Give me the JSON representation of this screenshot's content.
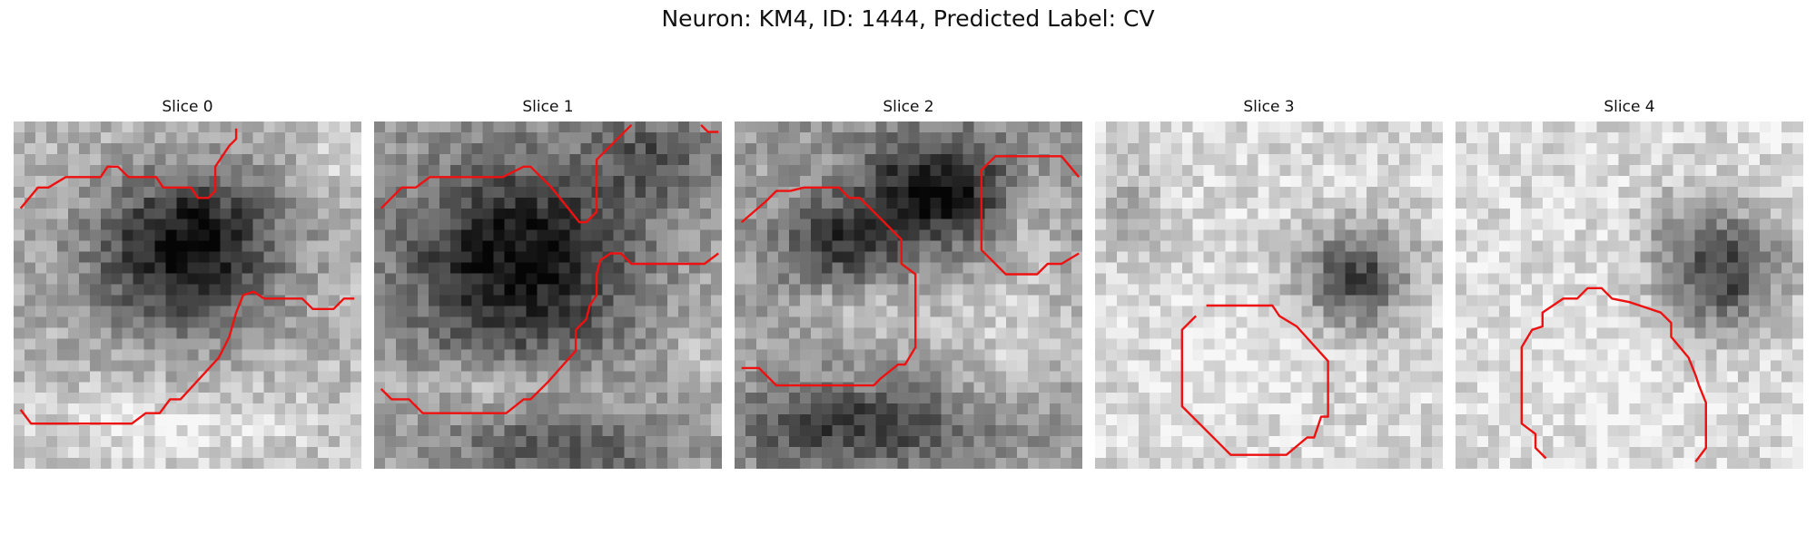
{
  "figure": {
    "title": "Neuron: KM4, ID: 1444, Predicted Label: CV"
  },
  "colors": {
    "contour": "#ee1111",
    "background": "#ffffff"
  },
  "panels": [
    {
      "title": "Slice 0",
      "dark_blobs": [
        [
          0.48,
          0.4,
          0.36,
          0.3,
          0.85
        ],
        [
          0.55,
          0.3,
          0.28,
          0.22,
          0.35
        ]
      ],
      "light_blobs": [
        [
          0.45,
          0.88,
          0.55,
          0.16,
          0.55
        ],
        [
          0.95,
          0.1,
          0.12,
          0.15,
          0.35
        ]
      ],
      "base": 0.72,
      "contours": [
        [
          [
            0.02,
            0.25
          ],
          [
            0.07,
            0.19
          ],
          [
            0.1,
            0.19
          ],
          [
            0.15,
            0.16
          ],
          [
            0.25,
            0.16
          ],
          [
            0.27,
            0.13
          ],
          [
            0.3,
            0.13
          ],
          [
            0.33,
            0.16
          ],
          [
            0.41,
            0.16
          ],
          [
            0.43,
            0.19
          ],
          [
            0.51,
            0.19
          ],
          [
            0.53,
            0.22
          ],
          [
            0.56,
            0.22
          ],
          [
            0.58,
            0.2
          ],
          [
            0.58,
            0.13
          ],
          [
            0.62,
            0.07
          ],
          [
            0.64,
            0.05
          ],
          [
            0.64,
            0.02
          ]
        ],
        [
          [
            0.02,
            0.83
          ],
          [
            0.05,
            0.87
          ],
          [
            0.34,
            0.87
          ],
          [
            0.38,
            0.84
          ],
          [
            0.42,
            0.84
          ],
          [
            0.45,
            0.8
          ],
          [
            0.48,
            0.8
          ],
          [
            0.59,
            0.68
          ],
          [
            0.62,
            0.62
          ],
          [
            0.64,
            0.55
          ],
          [
            0.66,
            0.5
          ],
          [
            0.69,
            0.49
          ],
          [
            0.72,
            0.51
          ],
          [
            0.83,
            0.51
          ],
          [
            0.86,
            0.54
          ],
          [
            0.92,
            0.54
          ],
          [
            0.95,
            0.51
          ],
          [
            0.98,
            0.51
          ]
        ]
      ]
    },
    {
      "title": "Slice 1",
      "dark_blobs": [
        [
          0.42,
          0.4,
          0.4,
          0.35,
          0.95
        ],
        [
          0.8,
          0.1,
          0.22,
          0.15,
          0.45
        ],
        [
          0.55,
          0.95,
          0.35,
          0.12,
          0.5
        ]
      ],
      "light_blobs": [
        [
          0.35,
          0.75,
          0.35,
          0.08,
          0.55
        ],
        [
          0.95,
          0.65,
          0.12,
          0.25,
          0.35
        ]
      ],
      "base": 0.62,
      "contours": [
        [
          [
            0.02,
            0.25
          ],
          [
            0.08,
            0.19
          ],
          [
            0.12,
            0.19
          ],
          [
            0.16,
            0.16
          ],
          [
            0.37,
            0.16
          ],
          [
            0.43,
            0.13
          ],
          [
            0.45,
            0.13
          ],
          [
            0.51,
            0.19
          ],
          [
            0.55,
            0.24
          ],
          [
            0.59,
            0.29
          ],
          [
            0.61,
            0.29
          ],
          [
            0.64,
            0.26
          ],
          [
            0.64,
            0.11
          ],
          [
            0.68,
            0.07
          ],
          [
            0.74,
            0.01
          ]
        ],
        [
          [
            0.02,
            0.77
          ],
          [
            0.05,
            0.8
          ],
          [
            0.1,
            0.8
          ],
          [
            0.14,
            0.84
          ],
          [
            0.38,
            0.84
          ],
          [
            0.43,
            0.8
          ],
          [
            0.45,
            0.8
          ],
          [
            0.5,
            0.75
          ],
          [
            0.58,
            0.66
          ],
          [
            0.58,
            0.6
          ],
          [
            0.61,
            0.57
          ],
          [
            0.62,
            0.53
          ],
          [
            0.64,
            0.5
          ],
          [
            0.64,
            0.44
          ],
          [
            0.65,
            0.4
          ],
          [
            0.68,
            0.38
          ],
          [
            0.71,
            0.38
          ],
          [
            0.74,
            0.41
          ],
          [
            0.95,
            0.41
          ],
          [
            0.99,
            0.38
          ]
        ],
        [
          [
            0.94,
            0.01
          ],
          [
            0.96,
            0.03
          ],
          [
            0.99,
            0.03
          ]
        ]
      ]
    },
    {
      "title": "Slice 2",
      "dark_blobs": [
        [
          0.58,
          0.2,
          0.28,
          0.2,
          0.95
        ],
        [
          0.3,
          0.35,
          0.22,
          0.15,
          0.6
        ],
        [
          0.35,
          0.88,
          0.45,
          0.15,
          0.65
        ]
      ],
      "light_blobs": [
        [
          0.8,
          0.6,
          0.25,
          0.25,
          0.55
        ],
        [
          0.4,
          0.55,
          0.3,
          0.12,
          0.35
        ],
        [
          0.85,
          0.28,
          0.12,
          0.18,
          0.45
        ]
      ],
      "base": 0.62,
      "contours": [
        [
          [
            0.02,
            0.29
          ],
          [
            0.09,
            0.23
          ],
          [
            0.12,
            0.2
          ],
          [
            0.16,
            0.2
          ],
          [
            0.2,
            0.19
          ],
          [
            0.3,
            0.19
          ],
          [
            0.33,
            0.22
          ],
          [
            0.36,
            0.22
          ],
          [
            0.42,
            0.28
          ],
          [
            0.48,
            0.34
          ],
          [
            0.48,
            0.41
          ],
          [
            0.52,
            0.44
          ],
          [
            0.52,
            0.65
          ],
          [
            0.49,
            0.7
          ],
          [
            0.47,
            0.7
          ],
          [
            0.42,
            0.74
          ],
          [
            0.4,
            0.76
          ],
          [
            0.12,
            0.76
          ],
          [
            0.1,
            0.74
          ],
          [
            0.07,
            0.71
          ],
          [
            0.02,
            0.71
          ]
        ],
        [
          [
            0.99,
            0.16
          ],
          [
            0.94,
            0.1
          ],
          [
            0.75,
            0.1
          ],
          [
            0.71,
            0.14
          ],
          [
            0.71,
            0.37
          ],
          [
            0.78,
            0.44
          ],
          [
            0.87,
            0.44
          ],
          [
            0.9,
            0.41
          ],
          [
            0.94,
            0.41
          ],
          [
            0.99,
            0.38
          ]
        ]
      ]
    },
    {
      "title": "Slice 3",
      "dark_blobs": [
        [
          0.75,
          0.45,
          0.2,
          0.18,
          0.95
        ],
        [
          0.1,
          0.25,
          0.1,
          0.2,
          0.3
        ]
      ],
      "light_blobs": [
        [
          0.4,
          0.7,
          0.25,
          0.25,
          0.25
        ]
      ],
      "base": 0.85,
      "contours": [
        [
          [
            0.29,
            0.56
          ],
          [
            0.25,
            0.6
          ],
          [
            0.25,
            0.82
          ],
          [
            0.3,
            0.87
          ],
          [
            0.39,
            0.96
          ],
          [
            0.55,
            0.96
          ],
          [
            0.61,
            0.91
          ],
          [
            0.63,
            0.91
          ],
          [
            0.65,
            0.85
          ],
          [
            0.67,
            0.85
          ],
          [
            0.67,
            0.69
          ],
          [
            0.58,
            0.59
          ],
          [
            0.53,
            0.56
          ],
          [
            0.51,
            0.53
          ],
          [
            0.32,
            0.53
          ]
        ]
      ]
    },
    {
      "title": "Slice 4",
      "dark_blobs": [
        [
          0.77,
          0.43,
          0.22,
          0.22,
          1.0
        ],
        [
          0.6,
          0.3,
          0.1,
          0.15,
          0.2
        ]
      ],
      "light_blobs": [
        [
          0.4,
          0.7,
          0.3,
          0.3,
          0.2
        ]
      ],
      "base": 0.86,
      "contours": [
        [
          [
            0.26,
            0.97
          ],
          [
            0.23,
            0.94
          ],
          [
            0.23,
            0.9
          ],
          [
            0.19,
            0.87
          ],
          [
            0.19,
            0.65
          ],
          [
            0.22,
            0.6
          ],
          [
            0.25,
            0.59
          ],
          [
            0.25,
            0.55
          ],
          [
            0.31,
            0.51
          ],
          [
            0.35,
            0.51
          ],
          [
            0.38,
            0.48
          ],
          [
            0.42,
            0.48
          ],
          [
            0.45,
            0.51
          ],
          [
            0.5,
            0.52
          ],
          [
            0.53,
            0.53
          ],
          [
            0.59,
            0.55
          ],
          [
            0.62,
            0.58
          ],
          [
            0.62,
            0.62
          ],
          [
            0.67,
            0.68
          ],
          [
            0.69,
            0.73
          ],
          [
            0.7,
            0.76
          ],
          [
            0.72,
            0.81
          ],
          [
            0.72,
            0.94
          ],
          [
            0.69,
            0.98
          ]
        ]
      ]
    }
  ]
}
